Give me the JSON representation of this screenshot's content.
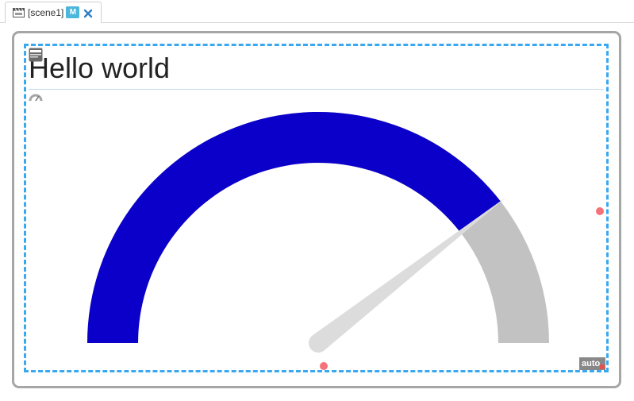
{
  "tab": {
    "title": "[scene1]",
    "badge": "M",
    "icon": "scene-icon",
    "close_icon": "close-icon"
  },
  "widget": {
    "title": "Hello world",
    "auto_label": "auto"
  },
  "gauge": {
    "value_fraction": 0.79,
    "colors": {
      "filled": "#0b00c9",
      "remaining": "#c2c2c2",
      "needle": "#dcdcdc"
    }
  },
  "colors": {
    "selection_border": "#3aa8f0",
    "frame_border": "#a6a6a6",
    "handle": "#f4737a",
    "badge": "#4cb7dc"
  }
}
